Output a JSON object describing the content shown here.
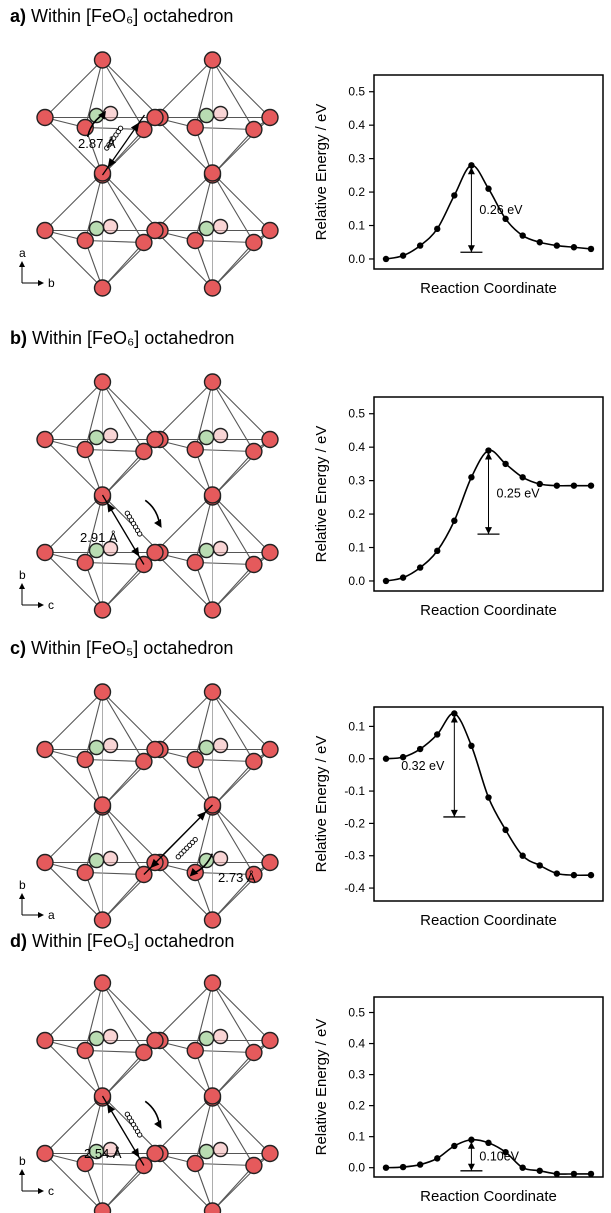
{
  "panels": [
    {
      "id": "a",
      "letter": "a)",
      "title": "Within [FeO₆] octahedron",
      "structure": {
        "axis_v": "a",
        "axis_h": "b",
        "distance": "2.87 Å"
      },
      "chart_data": {
        "type": "line",
        "ylabel": "Relative Energy / eV",
        "xlabel": "Reaction Coordinate",
        "ylim": [
          -0.03,
          0.55
        ],
        "yticks": [
          "0.0",
          "0.1",
          "0.2",
          "0.3",
          "0.4",
          "0.5"
        ],
        "ytick_values": [
          0,
          0.1,
          0.2,
          0.3,
          0.4,
          0.5
        ],
        "x": [
          0,
          1,
          2,
          3,
          4,
          5,
          6,
          7,
          8,
          9,
          10,
          11,
          12
        ],
        "y": [
          0.0,
          0.01,
          0.04,
          0.09,
          0.19,
          0.28,
          0.21,
          0.12,
          0.07,
          0.05,
          0.04,
          0.035,
          0.03
        ],
        "barrier_label": "0.26 eV",
        "barrier": {
          "x": 5,
          "y_top": 0.28,
          "y_bottom": 0.02
        }
      }
    },
    {
      "id": "b",
      "letter": "b)",
      "title": "Within [FeO₆] octahedron",
      "structure": {
        "axis_v": "b",
        "axis_h": "c",
        "distance": "2.91 Å"
      },
      "chart_data": {
        "type": "line",
        "ylabel": "Relative Energy / eV",
        "xlabel": "Reaction Coordinate",
        "ylim": [
          -0.03,
          0.55
        ],
        "yticks": [
          "0.0",
          "0.1",
          "0.2",
          "0.3",
          "0.4",
          "0.5"
        ],
        "ytick_values": [
          0,
          0.1,
          0.2,
          0.3,
          0.4,
          0.5
        ],
        "x": [
          0,
          1,
          2,
          3,
          4,
          5,
          6,
          7,
          8,
          9,
          10,
          11,
          12
        ],
        "y": [
          0.0,
          0.01,
          0.04,
          0.09,
          0.18,
          0.31,
          0.39,
          0.35,
          0.31,
          0.29,
          0.285,
          0.285,
          0.285
        ],
        "barrier_label": "0.25 eV",
        "barrier": {
          "x": 6,
          "y_top": 0.39,
          "y_bottom": 0.14
        }
      }
    },
    {
      "id": "c",
      "letter": "c)",
      "title": "Within [FeO₅] octahedron",
      "structure": {
        "axis_v": "b",
        "axis_h": "a",
        "distance": "2.73 Å"
      },
      "chart_data": {
        "type": "line",
        "ylabel": "Relative Energy / eV",
        "xlabel": "Reaction Coordinate",
        "ylim": [
          -0.44,
          0.16
        ],
        "yticks": [
          "0.1",
          "0.0",
          "-0.1",
          "-0.2",
          "-0.3",
          "-0.4"
        ],
        "ytick_values": [
          0.1,
          0,
          -0.1,
          -0.2,
          -0.3,
          -0.4
        ],
        "x": [
          0,
          1,
          2,
          3,
          4,
          5,
          6,
          7,
          8,
          9,
          10,
          11,
          12
        ],
        "y": [
          0.0,
          0.005,
          0.03,
          0.075,
          0.14,
          0.04,
          -0.12,
          -0.22,
          -0.3,
          -0.33,
          -0.355,
          -0.36,
          -0.36
        ],
        "barrier_label": "0.32 eV",
        "barrier": {
          "x": 4,
          "y_top": 0.14,
          "y_bottom": -0.18
        }
      }
    },
    {
      "id": "d",
      "letter": "d)",
      "title": "Within [FeO₅] octahedron",
      "structure": {
        "axis_v": "b",
        "axis_h": "c",
        "distance": "2.54 Å"
      },
      "chart_data": {
        "type": "line",
        "ylabel": "Relative Energy / eV",
        "xlabel": "Reaction Coordinate",
        "ylim": [
          -0.03,
          0.55
        ],
        "yticks": [
          "0.0",
          "0.1",
          "0.2",
          "0.3",
          "0.4",
          "0.5"
        ],
        "ytick_values": [
          0,
          0.1,
          0.2,
          0.3,
          0.4,
          0.5
        ],
        "x": [
          0,
          1,
          2,
          3,
          4,
          5,
          6,
          7,
          8,
          9,
          10,
          11,
          12
        ],
        "y": [
          0.0,
          0.002,
          0.01,
          0.03,
          0.07,
          0.09,
          0.08,
          0.05,
          0.0,
          -0.01,
          -0.02,
          -0.02,
          -0.02
        ],
        "barrier_label": "0.10eV",
        "barrier": {
          "x": 5,
          "y_top": 0.09,
          "y_bottom": -0.01
        }
      }
    }
  ]
}
